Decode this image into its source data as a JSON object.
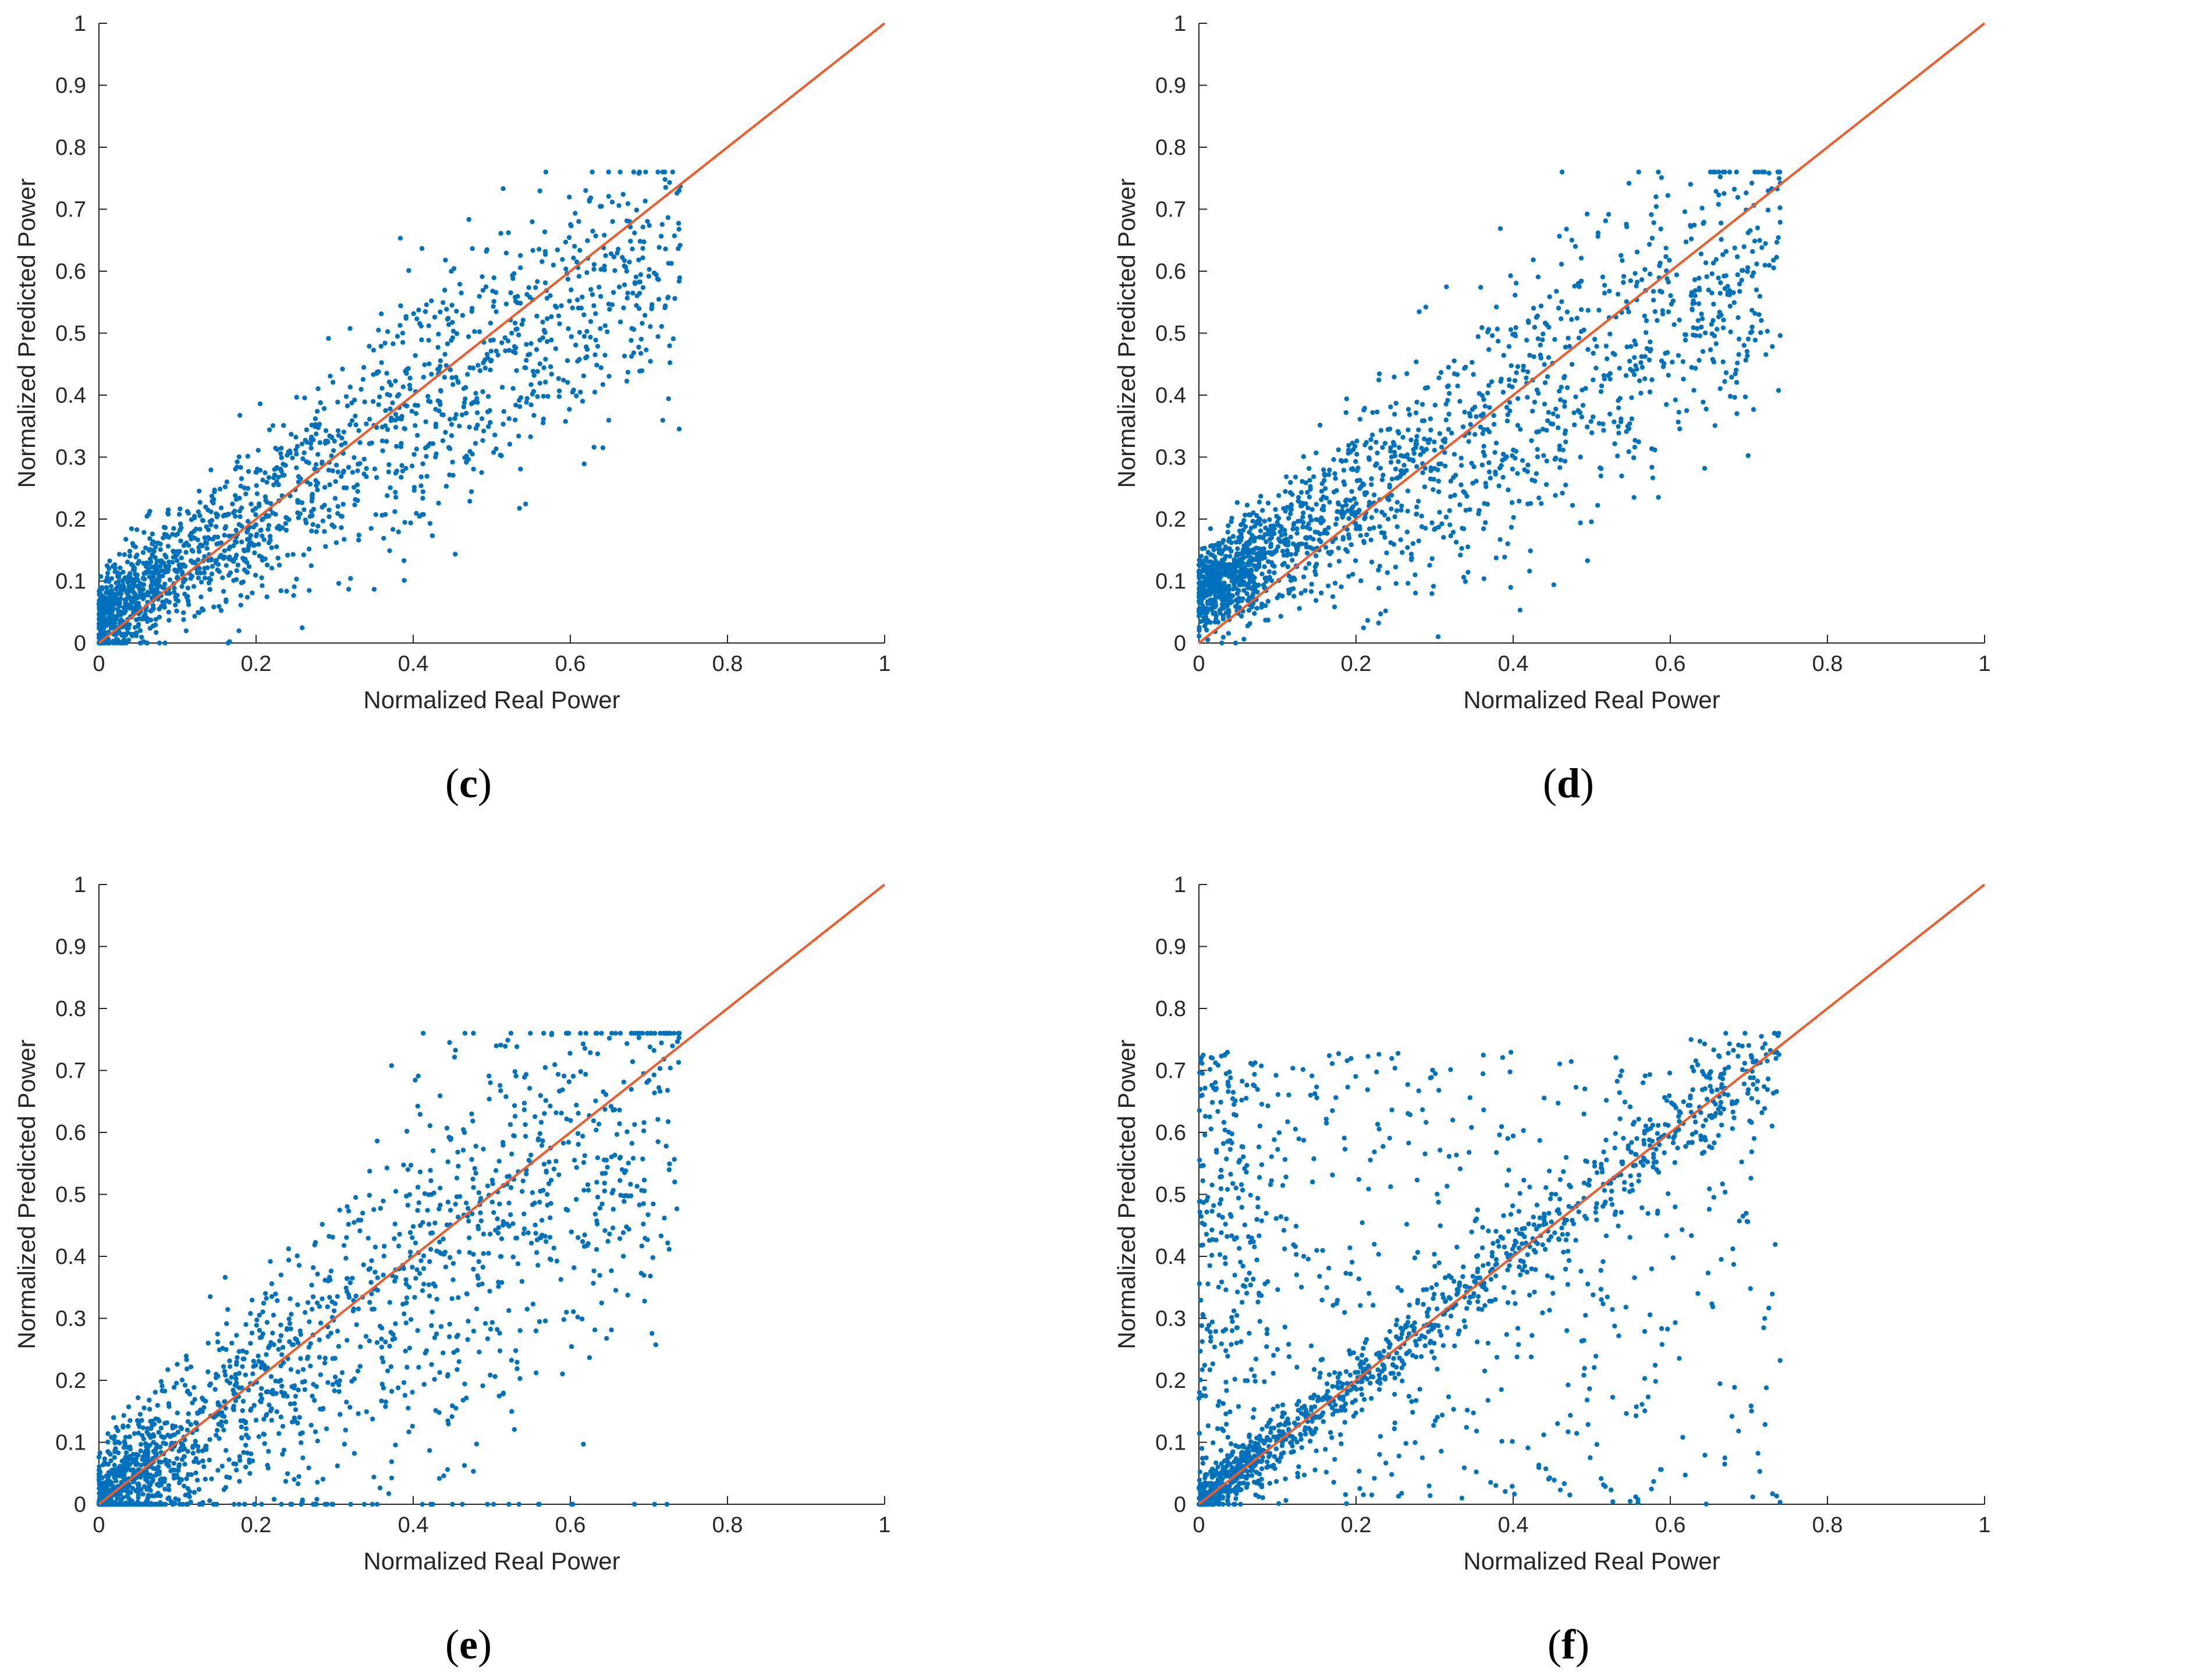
{
  "chart_data": [
    {
      "type": "scatter",
      "panel_label": "c",
      "xlabel": "Normalized Real Power",
      "ylabel": "Normalized Predicted Power",
      "xlim": [
        0,
        1
      ],
      "ylim": [
        0,
        1
      ],
      "xticks": [
        "0",
        "0.2",
        "0.4",
        "0.6",
        "0.8",
        "1"
      ],
      "yticks": [
        "0",
        "0.1",
        "0.2",
        "0.3",
        "0.4",
        "0.5",
        "0.6",
        "0.7",
        "0.8",
        "0.9",
        "1"
      ],
      "grid": false,
      "series": [
        {
          "name": "predictions",
          "kind": "scatter",
          "color": "#0072BD",
          "pattern": "linear_correlated",
          "slope": 0.82,
          "intercept": 0.04,
          "spread": 0.075,
          "x_max": 0.74,
          "n_points": 1800
        },
        {
          "name": "ideal",
          "kind": "line",
          "color": "#F05A28",
          "x": [
            0,
            1
          ],
          "y": [
            0,
            1
          ]
        }
      ]
    },
    {
      "type": "scatter",
      "panel_label": "d",
      "xlabel": "Normalized Real Power",
      "ylabel": "Normalized Predicted Power",
      "xlim": [
        0,
        1
      ],
      "ylim": [
        0,
        1
      ],
      "xticks": [
        "0",
        "0.2",
        "0.4",
        "0.6",
        "0.8",
        "1"
      ],
      "yticks": [
        "0",
        "0.1",
        "0.2",
        "0.3",
        "0.4",
        "0.5",
        "0.6",
        "0.7",
        "0.8",
        "0.9",
        "1"
      ],
      "grid": false,
      "series": [
        {
          "name": "predictions",
          "kind": "scatter",
          "color": "#0072BD",
          "pattern": "linear_correlated",
          "slope": 0.72,
          "intercept": 0.08,
          "spread": 0.09,
          "x_max": 0.74,
          "n_points": 1800
        },
        {
          "name": "ideal",
          "kind": "line",
          "color": "#F05A28",
          "x": [
            0,
            1
          ],
          "y": [
            0,
            1
          ]
        }
      ]
    },
    {
      "type": "scatter",
      "panel_label": "e",
      "xlabel": "Normalized Real Power",
      "ylabel": "Normalized Predicted Power",
      "xlim": [
        0,
        1
      ],
      "ylim": [
        0,
        1
      ],
      "xticks": [
        "0",
        "0.2",
        "0.4",
        "0.6",
        "0.8",
        "1"
      ],
      "yticks": [
        "0",
        "0.1",
        "0.2",
        "0.3",
        "0.4",
        "0.5",
        "0.6",
        "0.7",
        "0.8",
        "0.9",
        "1"
      ],
      "grid": false,
      "series": [
        {
          "name": "predictions",
          "kind": "scatter",
          "color": "#0072BD",
          "pattern": "wide_band",
          "slope": 0.9,
          "intercept": 0.0,
          "spread": 0.12,
          "x_max": 0.74,
          "n_points": 1800
        },
        {
          "name": "ideal",
          "kind": "line",
          "color": "#F05A28",
          "x": [
            0,
            1
          ],
          "y": [
            0,
            1
          ]
        }
      ]
    },
    {
      "type": "scatter",
      "panel_label": "f",
      "xlabel": "Normalized Real Power",
      "ylabel": "Normalized Predicted Power",
      "xlim": [
        0,
        1
      ],
      "ylim": [
        0,
        1
      ],
      "xticks": [
        "0",
        "0.2",
        "0.4",
        "0.6",
        "0.8",
        "1"
      ],
      "yticks": [
        "0",
        "0.1",
        "0.2",
        "0.3",
        "0.4",
        "0.5",
        "0.6",
        "0.7",
        "0.8",
        "0.9",
        "1"
      ],
      "grid": false,
      "series": [
        {
          "name": "predictions",
          "kind": "scatter",
          "color": "#0072BD",
          "pattern": "diagonal_plus_uniform",
          "slope": 1.0,
          "intercept": 0.0,
          "spread": 0.03,
          "x_max": 0.74,
          "n_points": 1800
        },
        {
          "name": "ideal",
          "kind": "line",
          "color": "#F05A28",
          "x": [
            0,
            1
          ],
          "y": [
            0,
            1
          ]
        }
      ]
    }
  ]
}
